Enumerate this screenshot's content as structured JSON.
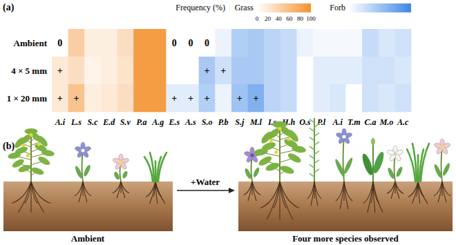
{
  "panel_labels": [
    "(a)",
    "(b)"
  ],
  "chart_data": {
    "type": "heatmap",
    "title": "Frequency (%)",
    "categories": [
      "A.i",
      "L.s",
      "S.c",
      "E.d",
      "S.v",
      "P.a",
      "A.g",
      "E.s",
      "A.s",
      "S.o",
      "P.b",
      "S.j",
      "M.l",
      "I.s",
      "H.h",
      "O.s",
      "P.l",
      "A.i",
      "T.m",
      "C.a",
      "M.o",
      "A.c"
    ],
    "column_group": [
      "Grass",
      "Grass",
      "Grass",
      "Grass",
      "Grass",
      "Grass",
      "Grass",
      "Forb",
      "Forb",
      "Forb",
      "Forb",
      "Forb",
      "Forb",
      "Forb",
      "Forb",
      "Forb",
      "Forb",
      "Forb",
      "Forb",
      "Forb",
      "Forb",
      "Forb"
    ],
    "rows": [
      "Ambient",
      "4 × 5 mm",
      "1 × 20 mm"
    ],
    "cells": [
      [
        0,
        45,
        15,
        15,
        30,
        90,
        90,
        0,
        0,
        0,
        10,
        40,
        45,
        35,
        30,
        10,
        5,
        5,
        5,
        30,
        20,
        25
      ],
      [
        20,
        30,
        10,
        15,
        25,
        90,
        90,
        0,
        0,
        45,
        25,
        45,
        45,
        35,
        30,
        0,
        15,
        15,
        15,
        25,
        25,
        20
      ],
      [
        20,
        55,
        15,
        20,
        30,
        90,
        90,
        15,
        15,
        40,
        10,
        50,
        65,
        35,
        30,
        0,
        15,
        20,
        0,
        25,
        20,
        25
      ]
    ],
    "symbols": [
      [
        "0",
        null,
        null,
        null,
        null,
        null,
        null,
        "0",
        "0",
        "0",
        null,
        null,
        null,
        null,
        null,
        null,
        null,
        null,
        null,
        null,
        null,
        null
      ],
      [
        "+",
        null,
        null,
        null,
        null,
        null,
        null,
        null,
        null,
        "+",
        "+",
        null,
        null,
        null,
        null,
        null,
        null,
        null,
        null,
        null,
        null,
        null
      ],
      [
        "+",
        "+",
        null,
        null,
        null,
        null,
        null,
        "+",
        "+",
        "+",
        null,
        "+",
        "+",
        null,
        null,
        null,
        null,
        null,
        null,
        null,
        null,
        null
      ]
    ],
    "colorbars": [
      {
        "name": "Grass",
        "colors": [
          "#ffffff",
          "#f39230"
        ],
        "range": [
          0,
          100
        ],
        "ticks": [
          0,
          20,
          40,
          60,
          80,
          100
        ]
      },
      {
        "name": "Forb",
        "colors": [
          "#ffffff",
          "#3f86e6"
        ],
        "range": [
          0,
          100
        ]
      }
    ]
  },
  "diagram": {
    "left_caption": "Ambient",
    "arrow_label": "+Water",
    "right_caption": "Four more species observed"
  }
}
